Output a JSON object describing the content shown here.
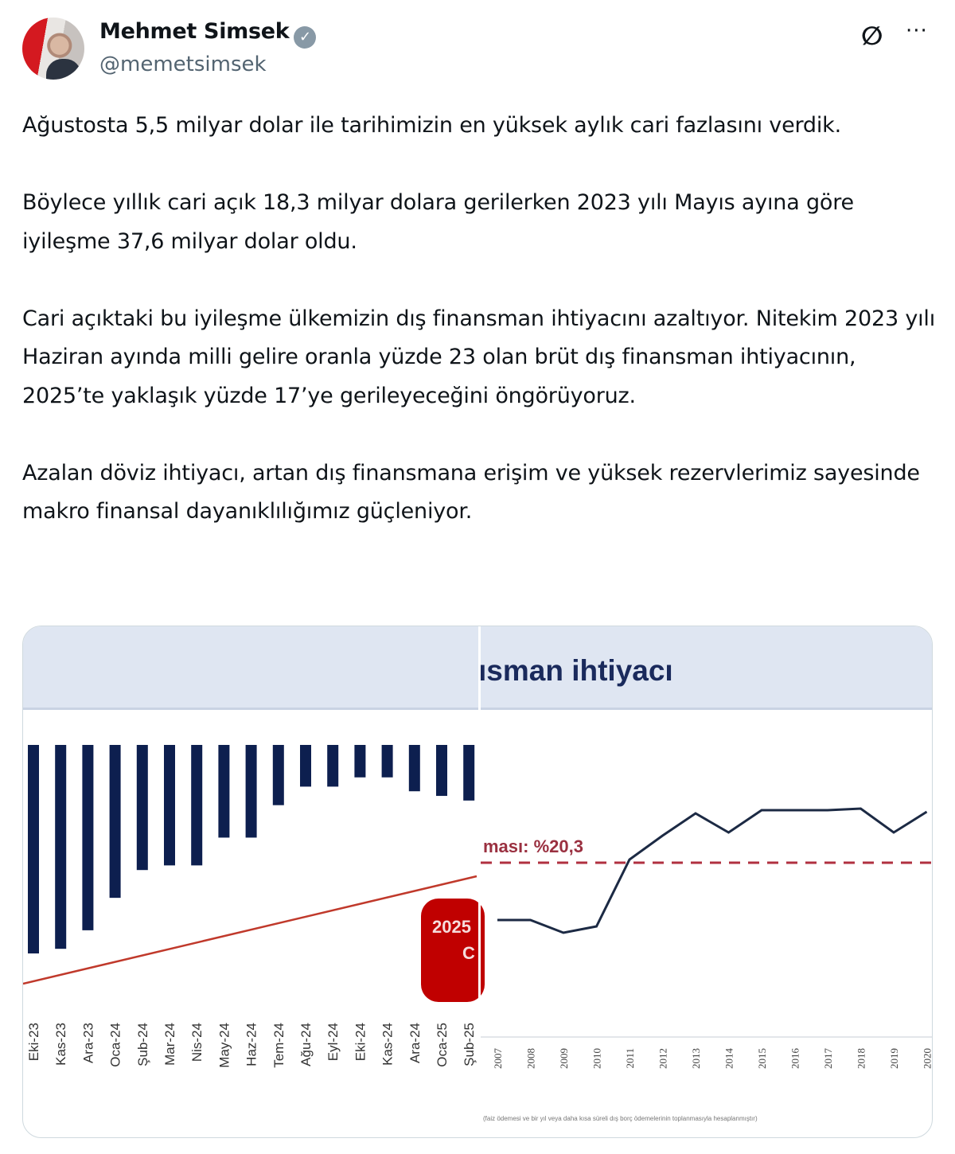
{
  "author": {
    "name": "Mehmet Simsek",
    "handle": "@memetsimsek",
    "verified": true
  },
  "actions": {
    "grok_icon": "grok-icon",
    "more_label": "···"
  },
  "tweet": {
    "paragraphs": [
      "Ağustosta 5,5 milyar dolar ile tarihimizin en yüksek aylık cari fazlasını verdik.",
      "Böylece yıllık cari açık 18,3 milyar dolara gerilerken 2023 yılı Mayıs ayına göre iyileşme 37,6 milyar dolar oldu.",
      "Cari açıktaki bu iyileşme ülkemizin dış finansman ihtiyacını azaltıyor. Nitekim 2023 yılı Haziran ayında milli gelire oranla yüzde 23 olan brüt dış finansman ihtiyacının, 2025’te yaklaşık yüzde 17’ye gerileyeceğini öngörüyoruz.",
      "Azalan döviz ihtiyacı, artan dış finansmana erişim ve yüksek rezervlerimiz sayesinde makro finansal dayanıklılığımız güçleniyor."
    ]
  },
  "media": {
    "title_fragment": "ısman ihtiyacı",
    "average_label": "ması: %20,3",
    "box_label_1": "2025",
    "box_label_2": "C",
    "footnote": "(faiz ödemesi ve bir yıl veya daha kısa süreli dış borç ödemelerinin toplanmasıyla hesaplanmıştır)",
    "colors": {
      "bars": "#0d1f4f",
      "line": "#1c2a44",
      "trend": "#c0392b",
      "average": "#b03040",
      "box": "#c00000",
      "header": "#dfe6f2"
    }
  },
  "chart_data": [
    {
      "type": "bar",
      "categories": [
        "Eki-23",
        "Kas-23",
        "Ara-23",
        "Oca-24",
        "Şub-24",
        "Mar-24",
        "Nis-24",
        "May-24",
        "Haz-24",
        "Tem-24",
        "Ağu-24",
        "Eyl-24",
        "Eki-24",
        "Kas-24",
        "Ara-24",
        "Oca-25",
        "Şub-25"
      ],
      "values": [
        -45,
        -44,
        -40,
        -33,
        -27,
        -26,
        -26,
        -20,
        -20,
        -13,
        -9,
        -9,
        -7,
        -7,
        -10,
        -11,
        -12
      ],
      "trend_line": "rising"
    },
    {
      "type": "line",
      "x": [
        "2007",
        "2008",
        "2009",
        "2010",
        "2011",
        "2012",
        "2013",
        "2014",
        "2015",
        "2016",
        "2017",
        "2018",
        "2019",
        "2020"
      ],
      "values": [
        16.7,
        16.7,
        15.9,
        16.3,
        20.5,
        22.0,
        23.4,
        22.2,
        23.6,
        23.6,
        23.6,
        23.7,
        22.2,
        23.5
      ],
      "average": 20.3,
      "average_label": "ması: %20,3"
    }
  ]
}
